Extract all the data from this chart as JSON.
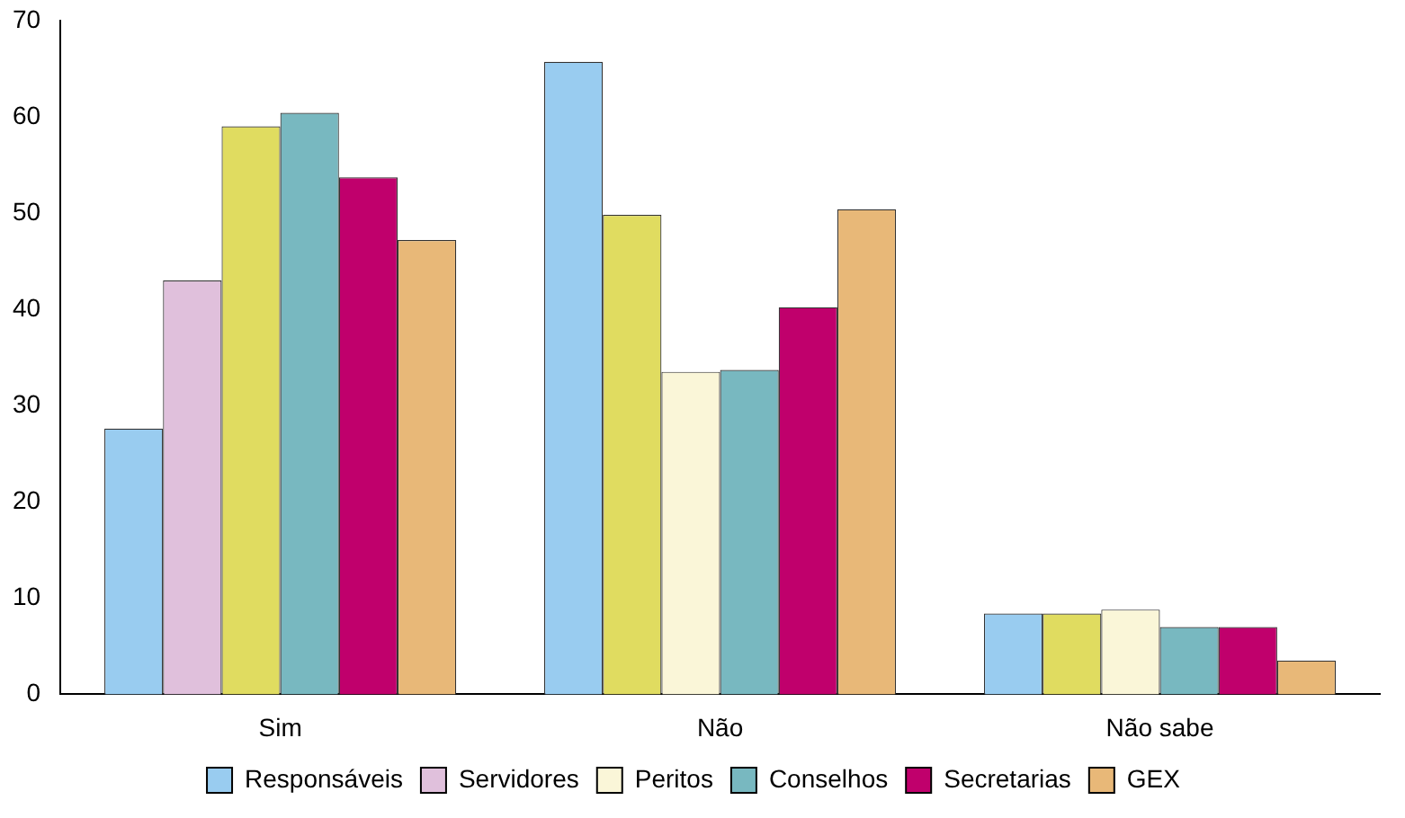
{
  "chart_data": {
    "type": "bar",
    "categories": [
      "Sim",
      "Não",
      "Não sabe"
    ],
    "series": [
      {
        "name": "Responsáveis",
        "color": "#99ccf0",
        "colors": [
          "#99ccf0",
          "#99ccf0",
          "#99ccf0"
        ],
        "values": [
          27.6,
          65.7,
          8.4
        ]
      },
      {
        "name": "Servidores",
        "color": "#e0c0dc",
        "colors": [
          "#e0c0dc",
          "#e0dc60",
          "#e0dc60"
        ],
        "values": [
          43,
          49.8,
          8.4
        ]
      },
      {
        "name": "Peritos",
        "color": "#faf6d8",
        "colors": [
          "#e0dc60",
          "#faf6d8",
          "#faf6d8"
        ],
        "values": [
          59,
          33.5,
          8.8
        ]
      },
      {
        "name": "Conselhos",
        "color": "#78b8c0",
        "colors": [
          "#78b8c0",
          "#78b8c0",
          "#78b8c0"
        ],
        "values": [
          60.4,
          33.7,
          7
        ]
      },
      {
        "name": "Secretarias",
        "color": "#c0006c",
        "colors": [
          "#c0006c",
          "#c0006c",
          "#c0006c"
        ],
        "values": [
          53.7,
          40.2,
          7
        ]
      },
      {
        "name": "GEX",
        "color": "#e8b878",
        "colors": [
          "#e8b878",
          "#e8b878",
          "#e8b878"
        ],
        "values": [
          47.2,
          50.4,
          3.5
        ]
      }
    ],
    "ylim": [
      0,
      70
    ],
    "yticks": [
      0,
      10,
      20,
      30,
      40,
      50,
      60,
      70
    ],
    "grid": false,
    "legend": "bottom"
  }
}
